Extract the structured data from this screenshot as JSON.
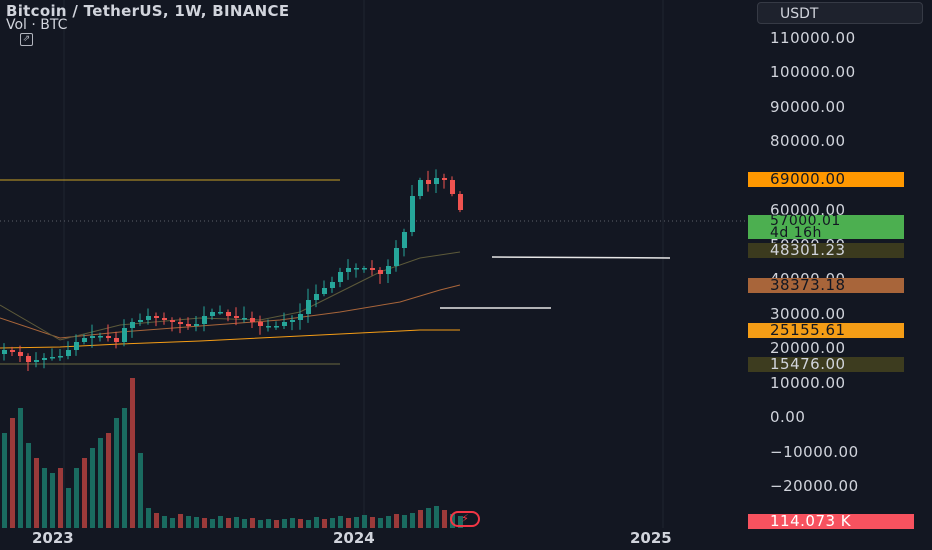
{
  "header": {
    "title": "Bitcoin / TetherUS, 1W, BINANCE",
    "volume_label": "Vol · BTC",
    "currency_button": "USDT"
  },
  "price_axis": {
    "ticks": [
      {
        "label": "110000.00",
        "value": 110000
      },
      {
        "label": "100000.00",
        "value": 100000
      },
      {
        "label": "90000.00",
        "value": 90000
      },
      {
        "label": "80000.00",
        "value": 80000
      },
      {
        "label": "60000.00",
        "value": 60000
      },
      {
        "label": "50000.00",
        "value": 50000
      },
      {
        "label": "40000.00",
        "value": 40000
      },
      {
        "label": "30000.00",
        "value": 30000
      },
      {
        "label": "20000.00",
        "value": 20000
      },
      {
        "label": "10000.00",
        "value": 10000
      },
      {
        "label": "0.00",
        "value": 0
      },
      {
        "label": "−10000.00",
        "value": -10000
      },
      {
        "label": "−20000.00",
        "value": -20000
      }
    ]
  },
  "badges": [
    {
      "name": "level-69000",
      "label": "69000.00",
      "value": 69000,
      "bg": "#ff9800",
      "fg": "#131722"
    },
    {
      "name": "current-price",
      "label": "57000.01",
      "value": 57000,
      "bg": "#4caf50",
      "fg": "#131722",
      "countdown": "4d 16h"
    },
    {
      "name": "ma-48301",
      "label": "48301.23",
      "value": 48301,
      "bg": "#3b3a1e",
      "fg": "#d1d4dc"
    },
    {
      "name": "ma-38373",
      "label": "38373.18",
      "value": 38373,
      "bg": "#a8653a",
      "fg": "#131722"
    },
    {
      "name": "ma-25155",
      "label": "25155.61",
      "value": 25155,
      "bg": "#f59d16",
      "fg": "#131722"
    },
    {
      "name": "level-15476",
      "label": "15476.00",
      "value": 15476,
      "bg": "#3d3c1f",
      "fg": "#d1d4dc"
    },
    {
      "name": "volume-value",
      "label": "114.073 K",
      "bg": "#f7525f",
      "fg": "#ffffff"
    }
  ],
  "time_axis": [
    "2023",
    "2024",
    "2025"
  ],
  "colors": {
    "up": "#26a69a",
    "down": "#ef5350",
    "background": "#131722",
    "grid": "#1f2430"
  }
}
